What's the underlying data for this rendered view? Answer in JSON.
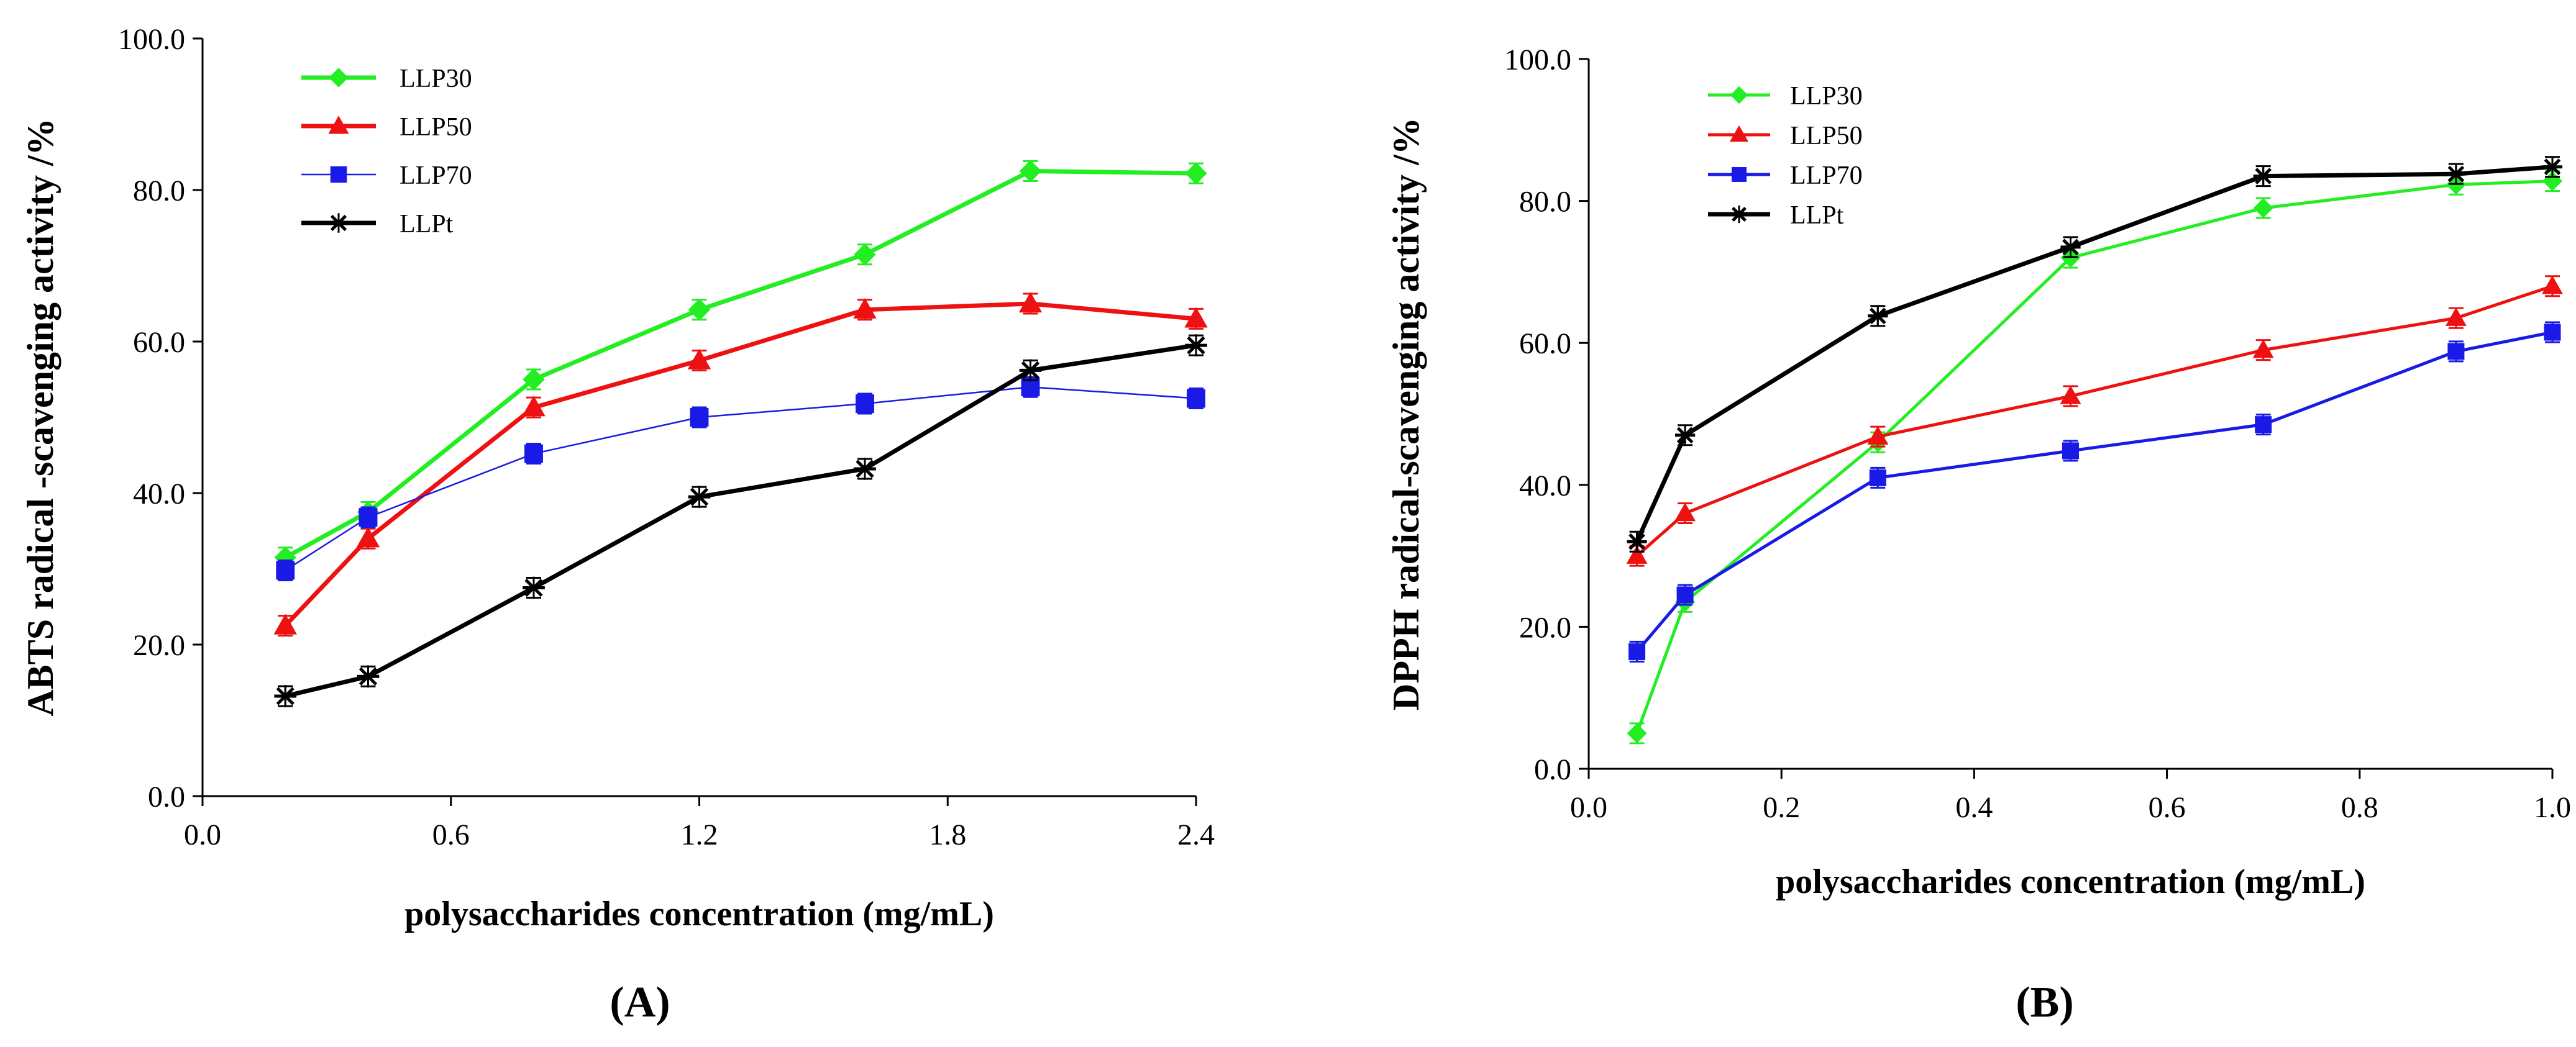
{
  "chart_data": [
    {
      "type": "line",
      "panel_label": "(A)",
      "title": "",
      "xlabel": "polysaccharides concentration (mg/mL)",
      "ylabel": "ABTS radical -scavenging activity /%",
      "xlim": [
        0.0,
        2.4
      ],
      "ylim": [
        0.0,
        100.0
      ],
      "x_ticks": [
        "0.0",
        "0.6",
        "1.2",
        "1.8",
        "2.4"
      ],
      "y_ticks": [
        "0.0",
        "20.0",
        "40.0",
        "60.0",
        "80.0",
        "100.0"
      ],
      "grid": false,
      "legend_position": "top-left",
      "x": [
        0.2,
        0.4,
        0.8,
        1.2,
        1.6,
        2.0,
        2.4
      ],
      "series": [
        {
          "name": "LLP30",
          "color": "#22ee22",
          "marker": "diamond",
          "values": [
            31.5,
            37.5,
            55.0,
            64.2,
            71.5,
            82.5,
            82.2
          ]
        },
        {
          "name": "LLP50",
          "color": "#ee1111",
          "marker": "triangle",
          "values": [
            22.5,
            34.0,
            51.3,
            57.5,
            64.2,
            65.0,
            63.0
          ]
        },
        {
          "name": "LLP70",
          "color": "#1a1ae6",
          "marker": "square",
          "values": [
            29.8,
            36.8,
            45.2,
            50.0,
            51.8,
            54.0,
            52.5
          ]
        },
        {
          "name": "LLPt",
          "color": "#000000",
          "marker": "asterisk",
          "values": [
            13.2,
            15.8,
            27.5,
            39.5,
            43.2,
            56.2,
            59.5
          ]
        }
      ]
    },
    {
      "type": "line",
      "panel_label": "(B)",
      "title": "",
      "xlabel": "polysaccharides concentration (mg/mL)",
      "ylabel": "DPPH radical-scavenging activity /%",
      "xlim": [
        0.0,
        1.0
      ],
      "ylim": [
        0.0,
        100.0
      ],
      "x_ticks": [
        "0.0",
        "0.2",
        "0.4",
        "0.6",
        "0.8",
        "1.0"
      ],
      "y_ticks": [
        "0.0",
        "20.0",
        "40.0",
        "60.0",
        "80.0",
        "100.0"
      ],
      "grid": false,
      "legend_position": "top-left",
      "x": [
        0.05,
        0.1,
        0.3,
        0.5,
        0.7,
        0.9,
        1.0
      ],
      "series": [
        {
          "name": "LLP30",
          "color": "#22ee22",
          "marker": "diamond",
          "values": [
            5.0,
            23.5,
            46.0,
            72.0,
            79.0,
            82.3,
            82.8
          ]
        },
        {
          "name": "LLP50",
          "color": "#ee1111",
          "marker": "triangle",
          "values": [
            30.0,
            36.0,
            46.8,
            52.5,
            59.0,
            63.5,
            68.0
          ]
        },
        {
          "name": "LLP70",
          "color": "#1a1ae6",
          "marker": "square",
          "values": [
            16.5,
            24.5,
            41.0,
            44.8,
            48.5,
            58.8,
            61.5
          ]
        },
        {
          "name": "LLPt",
          "color": "#000000",
          "marker": "asterisk",
          "values": [
            32.0,
            47.0,
            63.8,
            73.5,
            83.5,
            83.8,
            84.8
          ]
        }
      ]
    }
  ]
}
